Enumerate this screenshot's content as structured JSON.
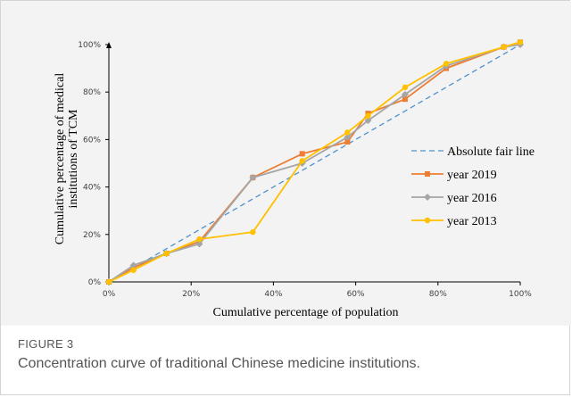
{
  "figure": {
    "label": "FIGURE 3",
    "caption": "Concentration curve of traditional Chinese medicine institutions."
  },
  "chart_data": {
    "type": "line",
    "xlabel": "Cumulative percentage of population",
    "ylabel": "Cumulative percentage of medical institutions of TCM",
    "ylabel_lines": [
      "Cumulative percentage of medical",
      "institutions of TCM"
    ],
    "xlim": [
      0,
      100
    ],
    "ylim": [
      0,
      100
    ],
    "x_ticks": [
      "0%",
      "20%",
      "40%",
      "60%",
      "80%",
      "100%"
    ],
    "y_ticks": [
      "0%",
      "20%",
      "40%",
      "60%",
      "80%",
      "100%"
    ],
    "legend_position": "right",
    "series": [
      {
        "name": "Absolute fair line",
        "style": "dashed",
        "marker": "none",
        "color": "#4f91cd",
        "x": [
          0,
          100
        ],
        "y": [
          0,
          100
        ]
      },
      {
        "name": "year 2019",
        "style": "solid",
        "marker": "square",
        "color": "#ed7d31",
        "x": [
          0,
          6,
          14,
          22,
          35,
          47,
          58,
          63,
          72,
          82,
          96,
          100
        ],
        "y": [
          0,
          6,
          12,
          17,
          44,
          54,
          59,
          71,
          77,
          90,
          99,
          101
        ]
      },
      {
        "name": "year 2016",
        "style": "solid",
        "marker": "diamond",
        "color": "#a5a5a5",
        "x": [
          0,
          6,
          14,
          22,
          35,
          47,
          58,
          63,
          72,
          82,
          96,
          100
        ],
        "y": [
          0,
          7,
          12,
          16,
          44,
          50,
          61,
          68,
          79,
          91,
          99,
          100
        ]
      },
      {
        "name": "year 2013",
        "style": "solid",
        "marker": "circle",
        "color": "#ffc000",
        "x": [
          0,
          6,
          14,
          22,
          35,
          47,
          58,
          63,
          72,
          82,
          96,
          100
        ],
        "y": [
          0,
          5,
          12,
          18,
          21,
          51,
          63,
          70,
          82,
          92,
          99,
          101
        ]
      }
    ]
  }
}
